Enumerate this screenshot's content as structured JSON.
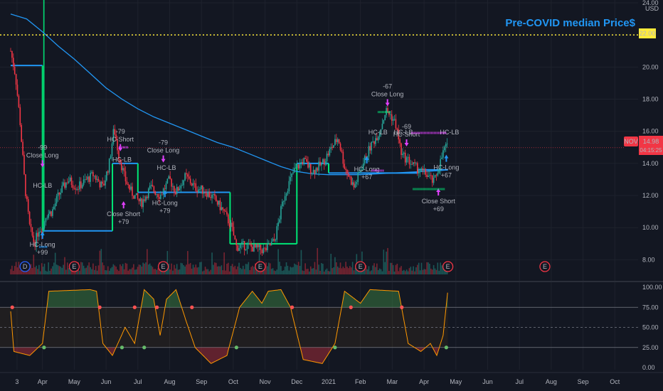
{
  "chart_data": {
    "type": "line",
    "symbol": "NOV",
    "currency": "USD",
    "title": "Pre-COVID median Price$",
    "reference_line": {
      "value": 22.0,
      "label": "22.00",
      "color": "#ffeb3b"
    },
    "last_price": {
      "value": 14.98,
      "label": "14.98",
      "countdown": "04:15:25",
      "symbol_label": "NOV",
      "color": "#f23645"
    },
    "price_axis": {
      "range": [
        7.0,
        24.0
      ],
      "ticks": [
        "8.00",
        "10.00",
        "12.00",
        "14.00",
        "16.00",
        "18.00",
        "20.00",
        "22.00",
        "24.00"
      ]
    },
    "oscillator_axis": {
      "range": [
        0,
        100
      ],
      "ticks": [
        "0.00",
        "25.00",
        "50.00",
        "75.00",
        "100.00"
      ],
      "levels": [
        25,
        50,
        75
      ]
    },
    "time_axis": [
      {
        "label": "3",
        "t": 0.2
      },
      {
        "label": "Apr",
        "t": 1
      },
      {
        "label": "May",
        "t": 2
      },
      {
        "label": "Jun",
        "t": 3
      },
      {
        "label": "Jul",
        "t": 4
      },
      {
        "label": "Aug",
        "t": 5
      },
      {
        "label": "Sep",
        "t": 6
      },
      {
        "label": "Oct",
        "t": 7
      },
      {
        "label": "Nov",
        "t": 8
      },
      {
        "label": "Dec",
        "t": 9
      },
      {
        "label": "2021",
        "t": 10
      },
      {
        "label": "Feb",
        "t": 11
      },
      {
        "label": "Mar",
        "t": 12
      },
      {
        "label": "Apr",
        "t": 13
      },
      {
        "label": "May",
        "t": 14
      },
      {
        "label": "Jun",
        "t": 15
      },
      {
        "label": "Jul",
        "t": 16
      },
      {
        "label": "Aug",
        "t": 17
      },
      {
        "label": "Sep",
        "t": 18
      },
      {
        "label": "Oct",
        "t": 19
      }
    ],
    "price_series": [
      {
        "t": 0,
        "v": 21.0
      },
      {
        "t": 0.15,
        "v": 19.5
      },
      {
        "t": 0.3,
        "v": 16.5
      },
      {
        "t": 0.45,
        "v": 12.5
      },
      {
        "t": 0.6,
        "v": 10.0
      },
      {
        "t": 0.75,
        "v": 9.0
      },
      {
        "t": 0.9,
        "v": 10.0
      },
      {
        "t": 1.0,
        "v": 9.8
      },
      {
        "t": 1.1,
        "v": 10.8
      },
      {
        "t": 1.3,
        "v": 11.0
      },
      {
        "t": 1.5,
        "v": 12.0
      },
      {
        "t": 1.8,
        "v": 13.0
      },
      {
        "t": 2.1,
        "v": 12.5
      },
      {
        "t": 2.4,
        "v": 13.0
      },
      {
        "t": 2.6,
        "v": 13.3
      },
      {
        "t": 2.9,
        "v": 12.5
      },
      {
        "t": 3.1,
        "v": 14.0
      },
      {
        "t": 3.25,
        "v": 16.2
      },
      {
        "t": 3.4,
        "v": 14.5
      },
      {
        "t": 3.6,
        "v": 13.0
      },
      {
        "t": 3.8,
        "v": 12.2
      },
      {
        "t": 4.1,
        "v": 11.5
      },
      {
        "t": 4.4,
        "v": 12.5
      },
      {
        "t": 4.7,
        "v": 12.0
      },
      {
        "t": 5.0,
        "v": 13.0
      },
      {
        "t": 5.2,
        "v": 12.2
      },
      {
        "t": 5.5,
        "v": 13.2
      },
      {
        "t": 5.8,
        "v": 12.5
      },
      {
        "t": 6.1,
        "v": 12.3
      },
      {
        "t": 6.4,
        "v": 11.8
      },
      {
        "t": 6.7,
        "v": 11.0
      },
      {
        "t": 6.95,
        "v": 10.0
      },
      {
        "t": 7.1,
        "v": 8.8
      },
      {
        "t": 7.4,
        "v": 8.9
      },
      {
        "t": 7.7,
        "v": 8.7
      },
      {
        "t": 8.0,
        "v": 8.6
      },
      {
        "t": 8.3,
        "v": 9.2
      },
      {
        "t": 8.6,
        "v": 12.0
      },
      {
        "t": 8.9,
        "v": 13.5
      },
      {
        "t": 9.2,
        "v": 14.2
      },
      {
        "t": 9.5,
        "v": 13.5
      },
      {
        "t": 9.8,
        "v": 14.0
      },
      {
        "t": 10.1,
        "v": 15.0
      },
      {
        "t": 10.3,
        "v": 15.6
      },
      {
        "t": 10.5,
        "v": 13.8
      },
      {
        "t": 10.8,
        "v": 12.5
      },
      {
        "t": 11.0,
        "v": 13.6
      },
      {
        "t": 11.3,
        "v": 15.0
      },
      {
        "t": 11.6,
        "v": 16.0
      },
      {
        "t": 11.8,
        "v": 17.3
      },
      {
        "t": 11.95,
        "v": 17.0
      },
      {
        "t": 12.1,
        "v": 16.5
      },
      {
        "t": 12.3,
        "v": 14.5
      },
      {
        "t": 12.5,
        "v": 14.2
      },
      {
        "t": 12.7,
        "v": 13.8
      },
      {
        "t": 12.9,
        "v": 13.5
      },
      {
        "t": 13.1,
        "v": 13.3
      },
      {
        "t": 13.3,
        "v": 12.8
      },
      {
        "t": 13.5,
        "v": 14.0
      },
      {
        "t": 13.65,
        "v": 15.0
      },
      {
        "t": 13.75,
        "v": 14.98
      }
    ],
    "moving_average": [
      {
        "t": 0,
        "v": 23.3
      },
      {
        "t": 0.5,
        "v": 23.0
      },
      {
        "t": 1.0,
        "v": 22.2
      },
      {
        "t": 1.5,
        "v": 21.3
      },
      {
        "t": 2.0,
        "v": 20.5
      },
      {
        "t": 2.5,
        "v": 19.6
      },
      {
        "t": 3.0,
        "v": 18.7
      },
      {
        "t": 3.5,
        "v": 18.0
      },
      {
        "t": 4.0,
        "v": 17.4
      },
      {
        "t": 4.5,
        "v": 16.9
      },
      {
        "t": 5.0,
        "v": 16.5
      },
      {
        "t": 5.5,
        "v": 16.1
      },
      {
        "t": 6.0,
        "v": 15.7
      },
      {
        "t": 6.5,
        "v": 15.3
      },
      {
        "t": 7.0,
        "v": 15.0
      },
      {
        "t": 7.5,
        "v": 14.6
      },
      {
        "t": 8.0,
        "v": 14.2
      },
      {
        "t": 8.5,
        "v": 13.8
      },
      {
        "t": 9.0,
        "v": 13.5
      },
      {
        "t": 9.5,
        "v": 13.35
      },
      {
        "t": 10.0,
        "v": 13.3
      },
      {
        "t": 10.5,
        "v": 13.3
      },
      {
        "t": 11.0,
        "v": 13.3
      },
      {
        "t": 11.5,
        "v": 13.35
      },
      {
        "t": 12.0,
        "v": 13.4
      },
      {
        "t": 12.5,
        "v": 13.45
      },
      {
        "t": 13.0,
        "v": 13.5
      },
      {
        "t": 13.5,
        "v": 13.55
      },
      {
        "t": 13.75,
        "v": 13.6
      }
    ],
    "median_steps": [
      {
        "t": 0,
        "v": 20.1
      },
      {
        "t": 1.0,
        "v": 20.1
      },
      {
        "t": 1.0,
        "v": 9.8
      },
      {
        "t": 3.2,
        "v": 9.8
      },
      {
        "t": 3.2,
        "v": 14.0
      },
      {
        "t": 4.0,
        "v": 14.0
      },
      {
        "t": 4.0,
        "v": 12.2
      },
      {
        "t": 6.9,
        "v": 12.2
      },
      {
        "t": 6.9,
        "v": 9.0
      },
      {
        "t": 9.0,
        "v": 9.0
      },
      {
        "t": 9.0,
        "v": 14.0
      },
      {
        "t": 10.0,
        "v": 14.0
      },
      {
        "t": 10.0,
        "v": 13.4
      },
      {
        "t": 12.8,
        "v": 13.4
      },
      {
        "t": 12.8,
        "v": 13.6
      },
      {
        "t": 13.75,
        "v": 13.6
      }
    ],
    "oscillator": [
      {
        "t": 0,
        "v": 70
      },
      {
        "t": 0.1,
        "v": 20
      },
      {
        "t": 0.6,
        "v": 15
      },
      {
        "t": 1.0,
        "v": 30
      },
      {
        "t": 1.2,
        "v": 95
      },
      {
        "t": 2.5,
        "v": 97
      },
      {
        "t": 2.7,
        "v": 95
      },
      {
        "t": 2.9,
        "v": 30
      },
      {
        "t": 3.2,
        "v": 15
      },
      {
        "t": 3.6,
        "v": 50
      },
      {
        "t": 3.9,
        "v": 30
      },
      {
        "t": 4.2,
        "v": 97
      },
      {
        "t": 4.5,
        "v": 85
      },
      {
        "t": 4.7,
        "v": 40
      },
      {
        "t": 4.9,
        "v": 85
      },
      {
        "t": 5.2,
        "v": 97
      },
      {
        "t": 5.5,
        "v": 60
      },
      {
        "t": 5.8,
        "v": 25
      },
      {
        "t": 6.3,
        "v": 5
      },
      {
        "t": 6.8,
        "v": 15
      },
      {
        "t": 7.2,
        "v": 75
      },
      {
        "t": 7.6,
        "v": 95
      },
      {
        "t": 7.9,
        "v": 80
      },
      {
        "t": 8.1,
        "v": 95
      },
      {
        "t": 8.5,
        "v": 97
      },
      {
        "t": 8.8,
        "v": 75
      },
      {
        "t": 9.2,
        "v": 10
      },
      {
        "t": 9.8,
        "v": 5
      },
      {
        "t": 10.2,
        "v": 30
      },
      {
        "t": 10.5,
        "v": 95
      },
      {
        "t": 11.0,
        "v": 80
      },
      {
        "t": 11.3,
        "v": 97
      },
      {
        "t": 12.2,
        "v": 95
      },
      {
        "t": 12.5,
        "v": 30
      },
      {
        "t": 12.9,
        "v": 20
      },
      {
        "t": 13.2,
        "v": 30
      },
      {
        "t": 13.4,
        "v": 15
      },
      {
        "t": 13.6,
        "v": 40
      },
      {
        "t": 13.75,
        "v": 97
      }
    ],
    "osc_dots": [
      {
        "t": 0.05,
        "v": 75,
        "color": "#ff5252"
      },
      {
        "t": 1.05,
        "v": 25,
        "color": "#66bb6a"
      },
      {
        "t": 2.8,
        "v": 75,
        "color": "#ff5252"
      },
      {
        "t": 3.5,
        "v": 25,
        "color": "#66bb6a"
      },
      {
        "t": 3.9,
        "v": 75,
        "color": "#ff5252"
      },
      {
        "t": 4.2,
        "v": 25,
        "color": "#66bb6a"
      },
      {
        "t": 4.6,
        "v": 75,
        "color": "#ff5252"
      },
      {
        "t": 5.7,
        "v": 75,
        "color": "#ff5252"
      },
      {
        "t": 7.1,
        "v": 25,
        "color": "#66bb6a"
      },
      {
        "t": 8.85,
        "v": 75,
        "color": "#ff5252"
      },
      {
        "t": 10.2,
        "v": 25,
        "color": "#66bb6a"
      },
      {
        "t": 10.7,
        "v": 75,
        "color": "#ff5252"
      },
      {
        "t": 12.3,
        "v": 75,
        "color": "#ff5252"
      },
      {
        "t": 13.7,
        "v": 25,
        "color": "#66bb6a"
      }
    ],
    "signals": [
      {
        "type": "long",
        "t": 1.0,
        "v": 9.3,
        "lines": [
          "HC-Long",
          "+99"
        ]
      },
      {
        "type": "close_long",
        "t": 1.0,
        "v": 14.2,
        "lines": [
          "-99",
          "Close Long"
        ]
      },
      {
        "type": "close_short",
        "t": 3.55,
        "v": 11.2,
        "lines": [
          "Close Short",
          "+79"
        ]
      },
      {
        "type": "short",
        "t": 3.45,
        "v": 15.2,
        "lines": [
          "-79",
          "HC-Short"
        ]
      },
      {
        "type": "long",
        "t": 4.85,
        "v": 11.9,
        "lines": [
          "HC-Long",
          "+79"
        ]
      },
      {
        "type": "close_long",
        "t": 4.8,
        "v": 14.5,
        "lines": [
          "-79",
          "Close Long"
        ]
      },
      {
        "type": "long",
        "t": 11.2,
        "v": 14.0,
        "lines": [
          "HC-Long",
          "+67"
        ]
      },
      {
        "type": "close_long",
        "t": 11.85,
        "v": 18.0,
        "lines": [
          "-67",
          "Close Long"
        ]
      },
      {
        "type": "short",
        "t": 12.45,
        "v": 15.5,
        "lines": [
          "-69",
          "HC-Short"
        ]
      },
      {
        "type": "close_short",
        "t": 13.45,
        "v": 12.0,
        "lines": [
          "Close Short",
          "+69"
        ]
      },
      {
        "type": "long",
        "t": 13.7,
        "v": 14.1,
        "lines": [
          "HC-Long",
          "+67"
        ]
      }
    ],
    "lb_labels": [
      {
        "t": 1.0,
        "v": 12.5,
        "text": "HC-LB",
        "color": "#26a69a"
      },
      {
        "t": 3.5,
        "v": 14.1,
        "text": "HC-LB",
        "color": "#f23645"
      },
      {
        "t": 4.9,
        "v": 13.6,
        "text": "HC-LB",
        "color": "#26a69a"
      },
      {
        "t": 11.55,
        "v": 15.8,
        "text": "HC-LB",
        "color": "#26a69a"
      },
      {
        "t": 12.35,
        "v": 15.8,
        "text": "HC-LB",
        "color": "#f23645"
      },
      {
        "t": 13.8,
        "v": 15.8,
        "text": "HC-LB",
        "color": "#26a69a"
      }
    ],
    "earnings_markers": [
      {
        "t": 0.45,
        "label": "D",
        "color": "#2962ff"
      },
      {
        "t": 2.0,
        "label": "E",
        "color": "#f23645"
      },
      {
        "t": 4.8,
        "label": "E",
        "color": "#f23645"
      },
      {
        "t": 7.85,
        "label": "E",
        "color": "#f23645"
      },
      {
        "t": 11.0,
        "label": "E",
        "color": "#f23645"
      },
      {
        "t": 13.75,
        "label": "E",
        "color": "#f23645"
      },
      {
        "t": 16.8,
        "label": "E",
        "color": "#f23645"
      }
    ],
    "colors": {
      "background": "#131722",
      "grid": "#1e222d",
      "price_up": "#26a69a",
      "price_down": "#f23645",
      "ma": "#2196f3",
      "median": "#2196f3",
      "steps_green": "#00e676",
      "osc_line": "#ff9800",
      "title": "#2196f3"
    }
  }
}
